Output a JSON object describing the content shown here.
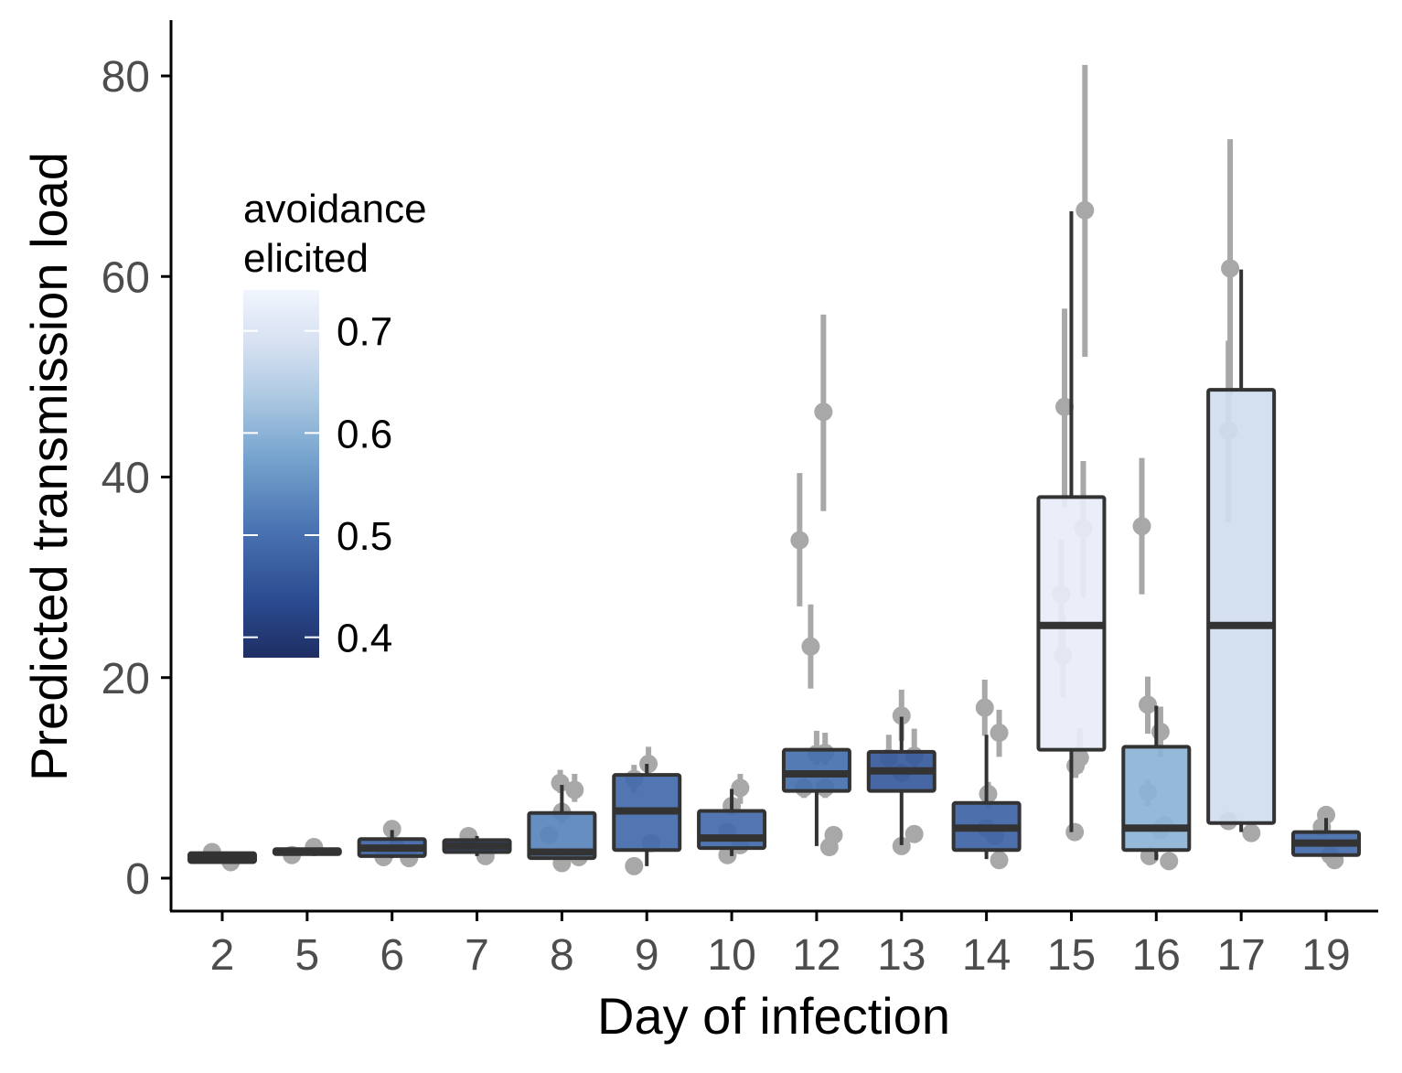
{
  "chart_data": {
    "type": "box",
    "title": "",
    "xlabel": "Day of infection",
    "ylabel": "Predicted transmission load",
    "ylim": [
      -3.2,
      85
    ],
    "yticks": [
      0,
      20,
      40,
      60,
      80
    ],
    "categories": [
      "2",
      "5",
      "6",
      "7",
      "8",
      "9",
      "10",
      "12",
      "13",
      "14",
      "15",
      "16",
      "17",
      "19"
    ],
    "boxes": [
      {
        "day": "2",
        "q1": 1.6,
        "median": 2.0,
        "q3": 2.5,
        "whisker_low": 1.6,
        "whisker_high": 2.5,
        "avoidance": 0.4
      },
      {
        "day": "5",
        "q1": 2.4,
        "median": 2.6,
        "q3": 2.9,
        "whisker_low": 2.4,
        "whisker_high": 2.9,
        "avoidance": 0.4
      },
      {
        "day": "6",
        "q1": 2.2,
        "median": 3.0,
        "q3": 3.9,
        "whisker_low": 2.0,
        "whisker_high": 4.8,
        "avoidance": 0.48
      },
      {
        "day": "7",
        "q1": 2.6,
        "median": 3.2,
        "q3": 3.8,
        "whisker_low": 2.2,
        "whisker_high": 4.2,
        "avoidance": 0.4
      },
      {
        "day": "8",
        "q1": 2.0,
        "median": 2.6,
        "q3": 6.5,
        "whisker_low": 1.9,
        "whisker_high": 9.3,
        "avoidance": 0.53
      },
      {
        "day": "9",
        "q1": 2.8,
        "median": 6.7,
        "q3": 10.3,
        "whisker_low": 1.2,
        "whisker_high": 11.4,
        "avoidance": 0.49
      },
      {
        "day": "10",
        "q1": 3.0,
        "median": 4.0,
        "q3": 6.7,
        "whisker_low": 2.2,
        "whisker_high": 8.9,
        "avoidance": 0.49
      },
      {
        "day": "12",
        "q1": 8.7,
        "median": 10.4,
        "q3": 12.8,
        "whisker_low": 3.2,
        "whisker_high": 12.8,
        "avoidance": 0.5
      },
      {
        "day": "13",
        "q1": 8.7,
        "median": 10.7,
        "q3": 12.6,
        "whisker_low": 3.3,
        "whisker_high": 16.1,
        "avoidance": 0.46
      },
      {
        "day": "14",
        "q1": 2.8,
        "median": 5.0,
        "q3": 7.5,
        "whisker_low": 1.9,
        "whisker_high": 14.3,
        "avoidance": 0.48
      },
      {
        "day": "15",
        "q1": 12.8,
        "median": 25.2,
        "q3": 38.0,
        "whisker_low": 4.6,
        "whisker_high": 66.5,
        "avoidance": 0.72
      },
      {
        "day": "16",
        "q1": 2.8,
        "median": 5.0,
        "q3": 13.1,
        "whisker_low": 1.8,
        "whisker_high": 17.2,
        "avoidance": 0.6
      },
      {
        "day": "17",
        "q1": 5.5,
        "median": 25.2,
        "q3": 48.7,
        "whisker_low": 4.6,
        "whisker_high": 60.7,
        "avoidance": 0.68
      },
      {
        "day": "19",
        "q1": 2.3,
        "median": 3.5,
        "q3": 4.6,
        "whisker_low": 2.3,
        "whisker_high": 6.0,
        "avoidance": 0.49
      }
    ],
    "points": [
      {
        "day": "2",
        "dx": -0.12,
        "y": 2.6
      },
      {
        "day": "2",
        "dx": 0.1,
        "y": 1.6
      },
      {
        "day": "5",
        "dx": -0.18,
        "y": 2.3
      },
      {
        "day": "5",
        "dx": 0.08,
        "y": 3.1
      },
      {
        "day": "6",
        "dx": 0.0,
        "y": 4.9,
        "lo": 4.0,
        "hi": 5.5
      },
      {
        "day": "6",
        "dx": -0.1,
        "y": 2.1
      },
      {
        "day": "6",
        "dx": 0.2,
        "y": 2.0
      },
      {
        "day": "6",
        "dx": 0.05,
        "y": 3.0
      },
      {
        "day": "7",
        "dx": -0.1,
        "y": 4.2
      },
      {
        "day": "7",
        "dx": 0.1,
        "y": 2.2
      },
      {
        "day": "8",
        "dx": -0.02,
        "y": 9.5,
        "lo": 8.5,
        "hi": 10.8
      },
      {
        "day": "8",
        "dx": 0.15,
        "y": 8.8,
        "lo": 7.6,
        "hi": 10.4
      },
      {
        "day": "8",
        "dx": 0.0,
        "y": 6.6,
        "lo": 5.5,
        "hi": 7.5
      },
      {
        "day": "8",
        "dx": -0.15,
        "y": 4.3
      },
      {
        "day": "8",
        "dx": 0.0,
        "y": 1.5
      },
      {
        "day": "8",
        "dx": 0.2,
        "y": 2.1
      },
      {
        "day": "9",
        "dx": -0.15,
        "y": 1.2
      },
      {
        "day": "9",
        "dx": -0.15,
        "y": 9.9,
        "lo": 8.5,
        "hi": 11.3
      },
      {
        "day": "9",
        "dx": 0.02,
        "y": 11.4,
        "lo": 10.2,
        "hi": 13.1
      },
      {
        "day": "9",
        "dx": 0.05,
        "y": 3.5
      },
      {
        "day": "10",
        "dx": -0.05,
        "y": 2.3
      },
      {
        "day": "10",
        "dx": 0.1,
        "y": 9.0,
        "lo": 7.4,
        "hi": 10.4
      },
      {
        "day": "10",
        "dx": 0.0,
        "y": 7.2
      },
      {
        "day": "10",
        "dx": -0.05,
        "y": 4.6
      },
      {
        "day": "10",
        "dx": 0.1,
        "y": 3.3
      },
      {
        "day": "12",
        "dx": -0.2,
        "y": 33.7,
        "lo": 27.1,
        "hi": 40.4
      },
      {
        "day": "12",
        "dx": -0.07,
        "y": 23.1,
        "lo": 18.9,
        "hi": 27.3
      },
      {
        "day": "12",
        "dx": 0.08,
        "y": 46.5,
        "lo": 36.6,
        "hi": 56.2
      },
      {
        "day": "12",
        "dx": 0.2,
        "y": 4.3
      },
      {
        "day": "12",
        "dx": 0.15,
        "y": 3.1
      },
      {
        "day": "12",
        "dx": 0.0,
        "y": 12.4,
        "lo": 11.3,
        "hi": 14.7
      },
      {
        "day": "12",
        "dx": 0.1,
        "y": 12.5,
        "lo": 11.3,
        "hi": 14.5
      },
      {
        "day": "12",
        "dx": -0.15,
        "y": 9.0,
        "lo": 8.0,
        "hi": 10.0
      },
      {
        "day": "12",
        "dx": 0.1,
        "y": 9.0,
        "lo": 8.0,
        "hi": 10.0
      },
      {
        "day": "13",
        "dx": 0.0,
        "y": 16.2,
        "lo": 13.7,
        "hi": 18.8
      },
      {
        "day": "13",
        "dx": -0.15,
        "y": 12.0,
        "lo": 10.5,
        "hi": 14.3
      },
      {
        "day": "13",
        "dx": 0.15,
        "y": 12.2,
        "lo": 10.5,
        "hi": 14.9
      },
      {
        "day": "13",
        "dx": 0.0,
        "y": 3.2
      },
      {
        "day": "13",
        "dx": 0.15,
        "y": 4.4
      },
      {
        "day": "13",
        "dx": 0.0,
        "y": 10.5
      },
      {
        "day": "14",
        "dx": -0.02,
        "y": 17.0,
        "lo": 14.2,
        "hi": 19.8
      },
      {
        "day": "14",
        "dx": 0.15,
        "y": 14.5,
        "lo": 12.1,
        "hi": 16.8
      },
      {
        "day": "14",
        "dx": 0.02,
        "y": 8.4,
        "lo": 7.0,
        "hi": 9.6
      },
      {
        "day": "14",
        "dx": 0.0,
        "y": 5.0
      },
      {
        "day": "14",
        "dx": 0.1,
        "y": 4.2
      },
      {
        "day": "14",
        "dx": 0.15,
        "y": 1.8
      },
      {
        "day": "15",
        "dx": -0.08,
        "y": 47.0,
        "lo": 37.0,
        "hi": 56.8
      },
      {
        "day": "15",
        "dx": 0.16,
        "y": 66.6,
        "lo": 52.0,
        "hi": 81.1
      },
      {
        "day": "15",
        "dx": 0.14,
        "y": 34.9,
        "lo": 28.0,
        "hi": 41.6
      },
      {
        "day": "15",
        "dx": -0.12,
        "y": 28.3,
        "lo": 21.5,
        "hi": 33.8
      },
      {
        "day": "15",
        "dx": -0.1,
        "y": 22.2,
        "lo": 18.0,
        "hi": 26.3
      },
      {
        "day": "15",
        "dx": 0.04,
        "y": 4.6
      },
      {
        "day": "15",
        "dx": 0.1,
        "y": 12.0,
        "lo": 10.5,
        "hi": 14.9
      },
      {
        "day": "15",
        "dx": 0.05,
        "y": 11.2,
        "lo": 10.0,
        "hi": 12.5
      },
      {
        "day": "16",
        "dx": -0.17,
        "y": 35.1,
        "lo": 28.3,
        "hi": 41.9
      },
      {
        "day": "16",
        "dx": -0.1,
        "y": 17.3,
        "lo": 14.4,
        "hi": 20.1
      },
      {
        "day": "16",
        "dx": 0.05,
        "y": 14.6,
        "lo": 12.1,
        "hi": 17.1
      },
      {
        "day": "16",
        "dx": -0.1,
        "y": 8.6,
        "lo": 7.2,
        "hi": 9.8
      },
      {
        "day": "16",
        "dx": -0.08,
        "y": 2.2
      },
      {
        "day": "16",
        "dx": 0.15,
        "y": 1.7
      },
      {
        "day": "16",
        "dx": 0.05,
        "y": 4.8
      },
      {
        "day": "16",
        "dx": 0.1,
        "y": 5.3
      },
      {
        "day": "17",
        "dx": -0.13,
        "y": 60.8,
        "lo": 48.2,
        "hi": 73.7
      },
      {
        "day": "17",
        "dx": -0.15,
        "y": 44.6,
        "lo": 35.5,
        "hi": 53.6
      },
      {
        "day": "17",
        "dx": -0.15,
        "y": 5.7
      },
      {
        "day": "17",
        "dx": 0.12,
        "y": 4.5
      },
      {
        "day": "19",
        "dx": 0.0,
        "y": 6.3,
        "lo": 5.3,
        "hi": 7.2
      },
      {
        "day": "19",
        "dx": -0.05,
        "y": 5.1
      },
      {
        "day": "19",
        "dx": 0.05,
        "y": 2.3
      },
      {
        "day": "19",
        "dx": 0.1,
        "y": 1.8
      }
    ],
    "legend": {
      "title_line1": "avoidance",
      "title_line2": "elicited",
      "type": "colorbar",
      "range": [
        0.38,
        0.74
      ],
      "ticks": [
        {
          "value": 0.7,
          "label": "0.7"
        },
        {
          "value": 0.6,
          "label": "0.6"
        },
        {
          "value": 0.5,
          "label": "0.5"
        },
        {
          "value": 0.4,
          "label": "0.4"
        }
      ],
      "color_low": "#1f2e63",
      "color_mid": "#6c9bc8",
      "color_high": "#f1f5fd",
      "placement": "top-left"
    },
    "grid": false,
    "colors": {
      "box_outline": "#333333",
      "points": "#a8a8a8",
      "axis": "#000000",
      "tick_text": "#4d4d4d"
    }
  }
}
